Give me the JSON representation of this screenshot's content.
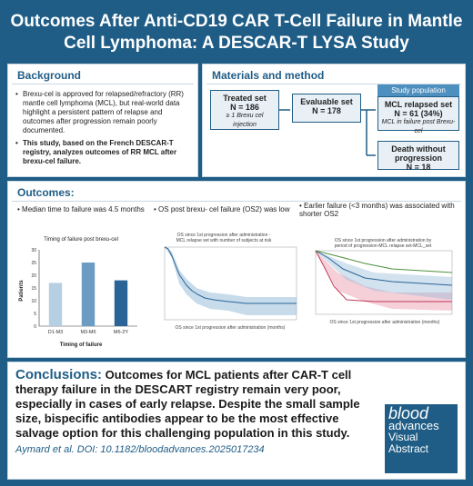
{
  "title": "Outcomes After Anti-CD19 CAR T-Cell Failure in Mantle Cell Lymphoma: A DESCAR-T LYSA Study",
  "background": {
    "heading": "Background",
    "bullets": [
      "Brexu-cel is approved for relapsed/refractory (RR) mantle cell lymphoma (MCL), but real-world data highlight a persistent pattern of relapse and outcomes after progression remain poorly documented.",
      "This study, based on the French DESCAR-T registry, analyzes outcomes of RR MCL after brexu-cel failure."
    ]
  },
  "methods": {
    "heading": "Materials and method",
    "treated_title": "Treated set",
    "treated_n": "N = 186",
    "treated_sub": "≥ 1 Brexu cel injection",
    "evaluable_title": "Evaluable set",
    "evaluable_n": "N = 178",
    "study_pop": "Study population",
    "mcl_title": "MCL relapsed set",
    "mcl_n": "N = 61 (34%)",
    "mcl_sub": "MCL in failure post Brexu-cel",
    "death_title": "Death without progression",
    "death_n": "N = 18"
  },
  "outcomes": {
    "heading": "Outcomes:",
    "b1": "Median time to failure was 4.5 months",
    "b2": "OS post brexu- cel failure (OS2) was low",
    "b3": "Earlier failure (<3 months) was associated with shorter OS2",
    "bar_title": "Timing of failure post brexu-cel",
    "km1_title": "OS since 1st progression after administration - MCL relapse set with number of subjects at risk",
    "km2_title": "OS since 1st progression after administration by period of progression-MCL relapse set-MCL_set"
  },
  "chart_data": {
    "type": "bar",
    "title": "Timing of failure post brexu-cel",
    "categories": [
      "D1-M3",
      "M3-M6",
      "M6-2Y"
    ],
    "values": [
      17,
      25,
      18
    ],
    "ylabel": "Patients",
    "xlabel": "Timing of failure",
    "ylim": [
      0,
      30
    ],
    "colors": [
      "#b7cfe2",
      "#6c9cc4",
      "#2a6497"
    ]
  },
  "conclusions": {
    "label": "Conclusions:",
    "text": "Outcomes for MCL patients after CAR-T cell therapy failure in the DESCART registry remain very poor, especially in cases of early relapse. Despite the small sample size, bispecific antibodies appear to be the most effective salvage option for this challenging population in this study.",
    "cite": "Aymard et al. DOI: 10.1182/bloodadvances.2025017234",
    "brand1": "blood",
    "brand2": "advances",
    "brand3": "Visual Abstract"
  }
}
